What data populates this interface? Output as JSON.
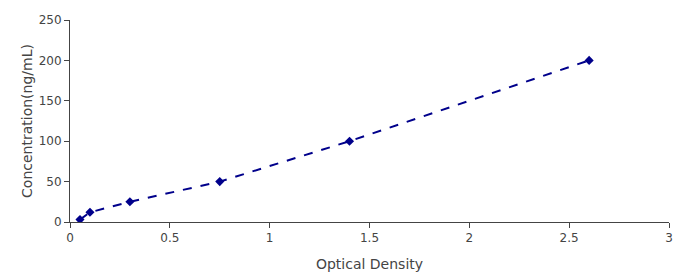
{
  "chart_data": {
    "type": "line",
    "x": [
      0.05,
      0.1,
      0.3,
      0.75,
      1.4,
      2.6
    ],
    "values": [
      3,
      12,
      25,
      50,
      100,
      200
    ],
    "color": "#00008B",
    "marker": "diamond",
    "line_style": "dashed",
    "xlabel": "Optical Density",
    "ylabel": "Concentration(ng/mL)",
    "xlim": [
      0,
      3
    ],
    "ylim": [
      0,
      250
    ],
    "xticks": [
      0,
      0.5,
      1,
      1.5,
      2,
      2.5,
      3
    ],
    "yticks": [
      0,
      50,
      100,
      150,
      200,
      250
    ],
    "grid": false
  }
}
